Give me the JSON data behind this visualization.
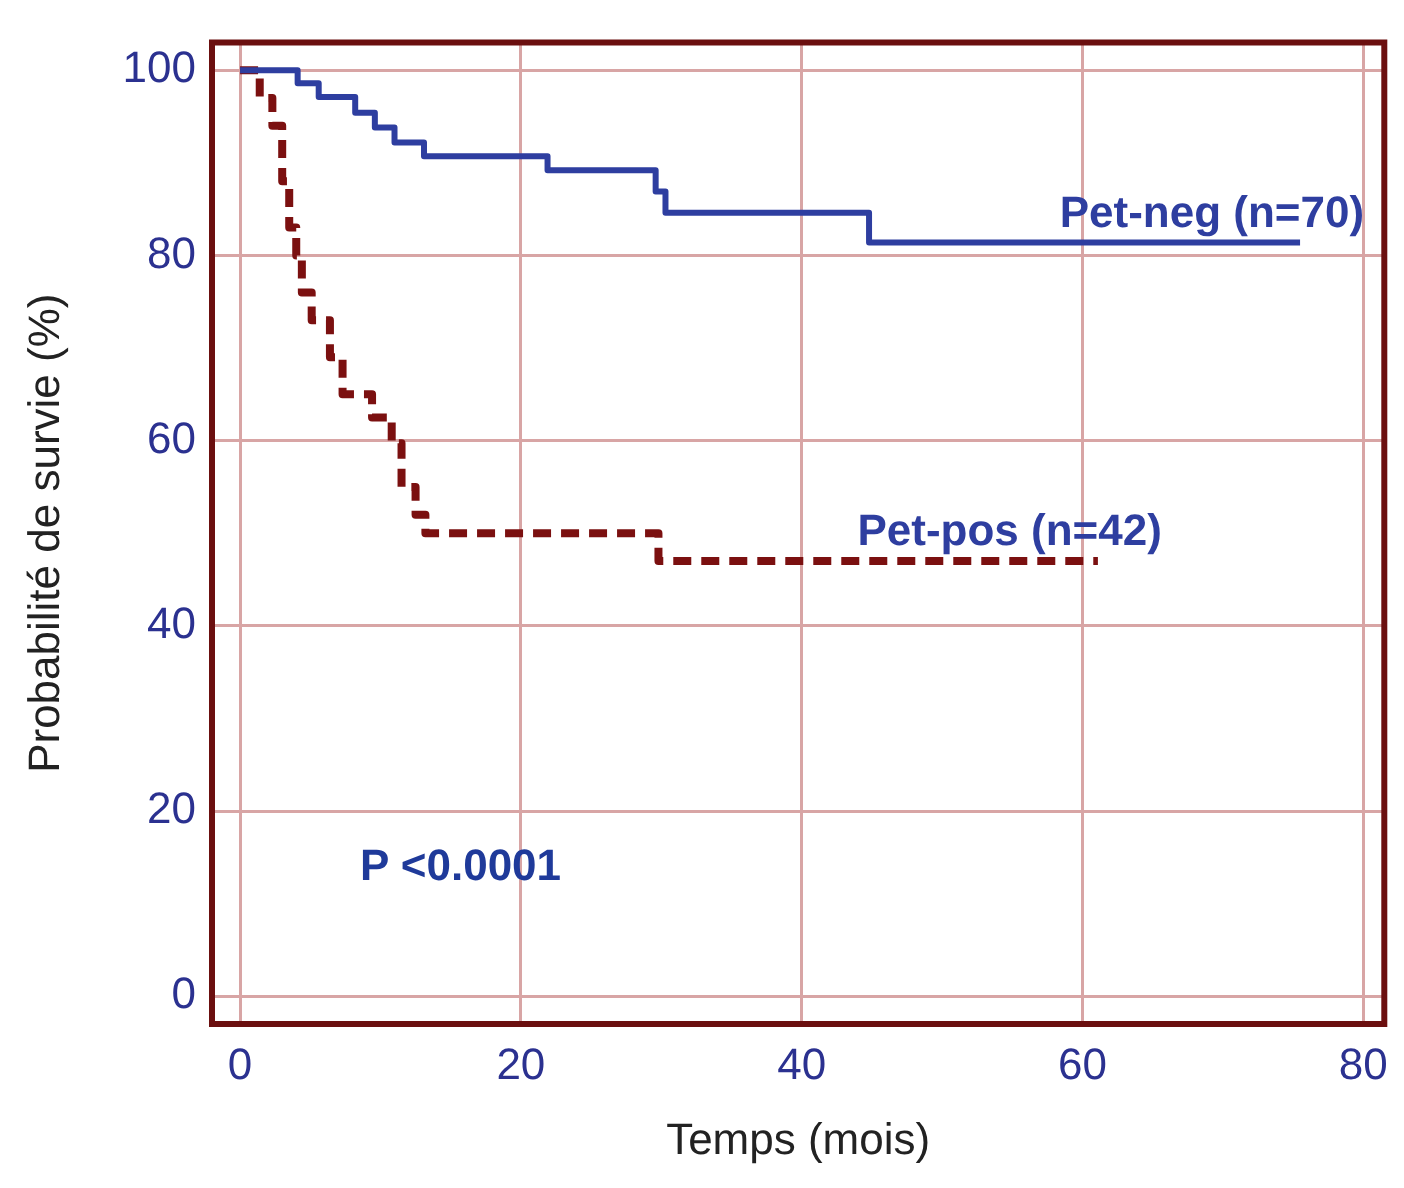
{
  "chart_data": {
    "type": "step",
    "xlabel": "Temps (mois)",
    "ylabel": "Probabilité de survie (%)",
    "xlim": [
      -2,
      81.5
    ],
    "ylim": [
      -3,
      103
    ],
    "xticks": [
      0,
      20,
      40,
      60,
      80
    ],
    "yticks": [
      0,
      20,
      40,
      60,
      80,
      100
    ],
    "grid": true,
    "legend": false,
    "annotations": [
      "P <0.0001"
    ],
    "series": [
      {
        "name": "Pet-neg (n=70)",
        "color": "#2e3ea0",
        "line_style": "solid",
        "x": [
          0,
          4.1,
          5.6,
          8.2,
          9.6,
          11.0,
          13.1,
          21.9,
          29.6,
          30.3,
          44.8,
          75.5
        ],
        "values": [
          100,
          98.6,
          97.1,
          95.4,
          93.8,
          92.2,
          90.7,
          89.2,
          86.9,
          84.6,
          81.4,
          81.4
        ]
      },
      {
        "name": "Pet-pos (n=42)",
        "color": "#7b1010",
        "line_style": "dashed",
        "x": [
          0,
          1.4,
          2.3,
          3.0,
          3.5,
          4.0,
          4.4,
          5.1,
          6.4,
          7.3,
          9.4,
          10.8,
          11.5,
          12.5,
          13.2,
          29.8,
          61.1
        ],
        "values": [
          100,
          97,
          94,
          88,
          83,
          80,
          76,
          73,
          69,
          65,
          62.5,
          59.7,
          55,
          52,
          50,
          47,
          47
        ]
      }
    ]
  }
}
